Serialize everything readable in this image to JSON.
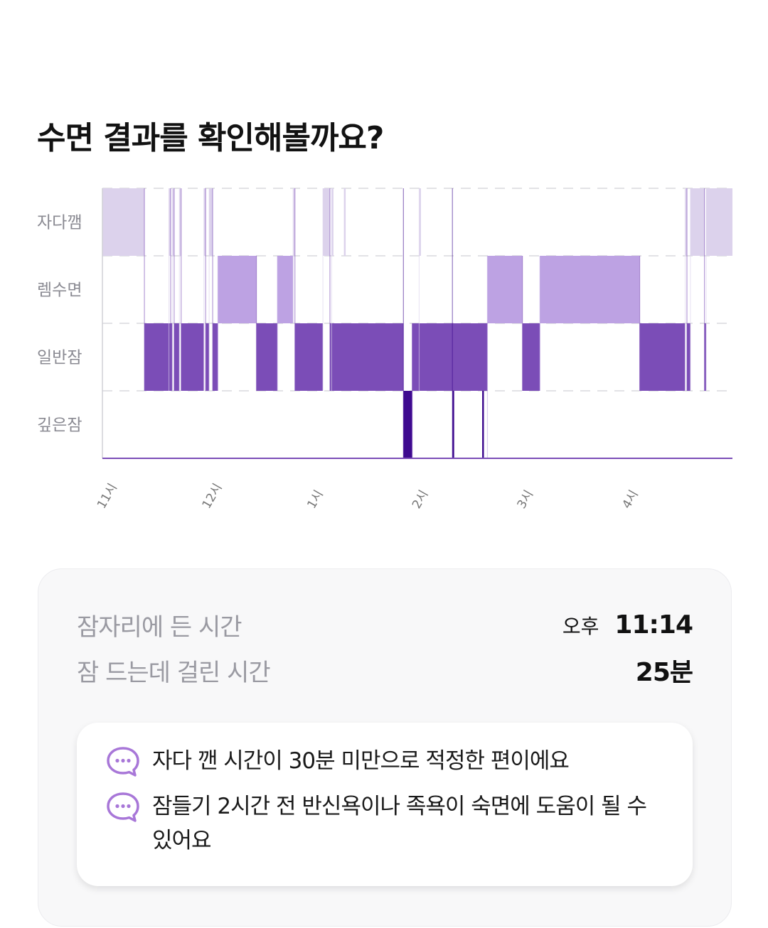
{
  "header": {
    "title": "수면 결과를 확인해볼까요?"
  },
  "chart_data": {
    "type": "hypnogram",
    "stages": [
      "자다깸",
      "렘수면",
      "일반잠",
      "깊은잠"
    ],
    "x_tick_labels": [
      "11시",
      "12시",
      "1시",
      "2시",
      "3시",
      "4시"
    ],
    "x_range_minutes_from_first_tick": [
      0,
      360
    ],
    "stage_colors": {
      "자다깸": "#dcd2ec",
      "렘수면": "#bda2e3",
      "일반잠": "#7b4db7",
      "깊은잠": "#3e0a8f"
    },
    "segments": [
      {
        "stage": "자다깸",
        "start": 0,
        "end": 24
      },
      {
        "stage": "일반잠",
        "start": 24,
        "end": 39
      },
      {
        "stage": "자다깸",
        "start": 38,
        "end": 39
      },
      {
        "stage": "일반잠",
        "start": 39,
        "end": 40
      },
      {
        "stage": "자다깸",
        "start": 40,
        "end": 41
      },
      {
        "stage": "일반잠",
        "start": 41,
        "end": 44
      },
      {
        "stage": "자다깸",
        "start": 44,
        "end": 45
      },
      {
        "stage": "일반잠",
        "start": 45,
        "end": 58
      },
      {
        "stage": "자다깸",
        "start": 58,
        "end": 59
      },
      {
        "stage": "일반잠",
        "start": 59,
        "end": 61
      },
      {
        "stage": "자다깸",
        "start": 61,
        "end": 63
      },
      {
        "stage": "일반잠",
        "start": 63,
        "end": 66
      },
      {
        "stage": "렘수면",
        "start": 66,
        "end": 88
      },
      {
        "stage": "일반잠",
        "start": 88,
        "end": 100
      },
      {
        "stage": "렘수면",
        "start": 100,
        "end": 109
      },
      {
        "stage": "자다깸",
        "start": 109,
        "end": 110
      },
      {
        "stage": "일반잠",
        "start": 110,
        "end": 126
      },
      {
        "stage": "자다깸",
        "start": 126,
        "end": 130
      },
      {
        "stage": "일반잠",
        "start": 130,
        "end": 172
      },
      {
        "stage": "자다깸",
        "start": 131,
        "end": 132
      },
      {
        "stage": "자다깸",
        "start": 138,
        "end": 139
      },
      {
        "stage": "깊은잠",
        "start": 172,
        "end": 177
      },
      {
        "stage": "일반잠",
        "start": 177,
        "end": 220
      },
      {
        "stage": "자다깸",
        "start": 181,
        "end": 182
      },
      {
        "stage": "깊은잠",
        "start": 200,
        "end": 201
      },
      {
        "stage": "깊은잠",
        "start": 217,
        "end": 218
      },
      {
        "stage": "렘수면",
        "start": 220,
        "end": 240
      },
      {
        "stage": "일반잠",
        "start": 240,
        "end": 250
      },
      {
        "stage": "렘수면",
        "start": 250,
        "end": 307
      },
      {
        "stage": "일반잠",
        "start": 307,
        "end": 333
      },
      {
        "stage": "자다깸",
        "start": 333,
        "end": 334
      },
      {
        "stage": "일반잠",
        "start": 334,
        "end": 336
      },
      {
        "stage": "자다깸",
        "start": 336,
        "end": 344
      },
      {
        "stage": "일반잠",
        "start": 344,
        "end": 345
      },
      {
        "stage": "자다깸",
        "start": 345,
        "end": 360
      }
    ]
  },
  "summary": {
    "bedtime_label": "잠자리에 든 시간",
    "bedtime_prefix": "오후",
    "bedtime_value": "11:14",
    "latency_label": "잠 드는데 걸린 시간",
    "latency_value": "25분"
  },
  "tips": [
    {
      "icon": "chat-bubble-icon",
      "text": "자다 깬 시간이 30분 미만으로 적정한 편이에요"
    },
    {
      "icon": "chat-bubble-icon",
      "text": "잠들기 2시간 전 반신욕이나 족욕이 숙면에 도움이 될 수 있어요"
    }
  ],
  "colors": {
    "accent": "#a877d8",
    "label": "#9a9aa2"
  }
}
